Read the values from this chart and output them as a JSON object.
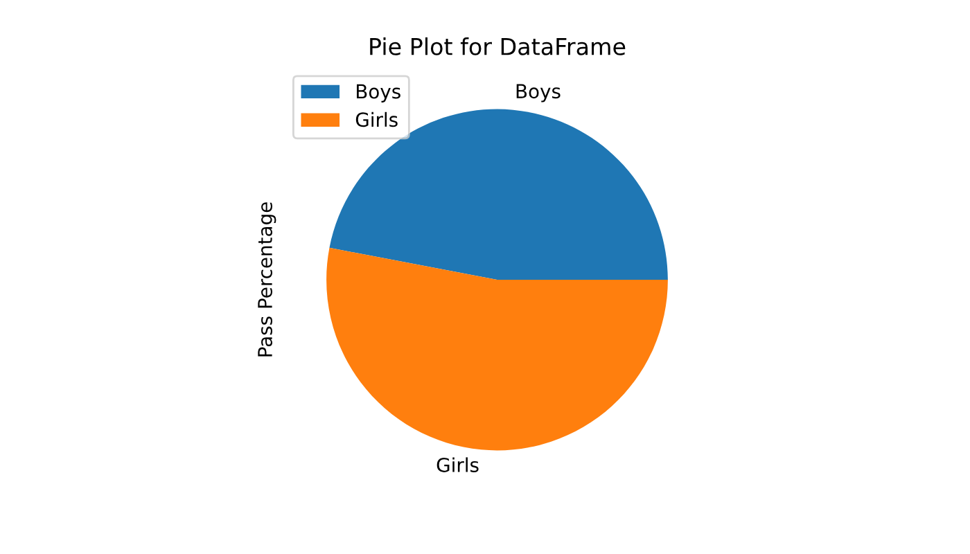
{
  "chart_data": {
    "type": "pie",
    "title": "Pie Plot for DataFrame",
    "ylabel": "Pass Percentage",
    "categories": [
      "Boys",
      "Girls"
    ],
    "values": [
      47,
      53
    ],
    "colors": [
      "#1f77b4",
      "#ff7f0e"
    ],
    "legend": "top left"
  }
}
